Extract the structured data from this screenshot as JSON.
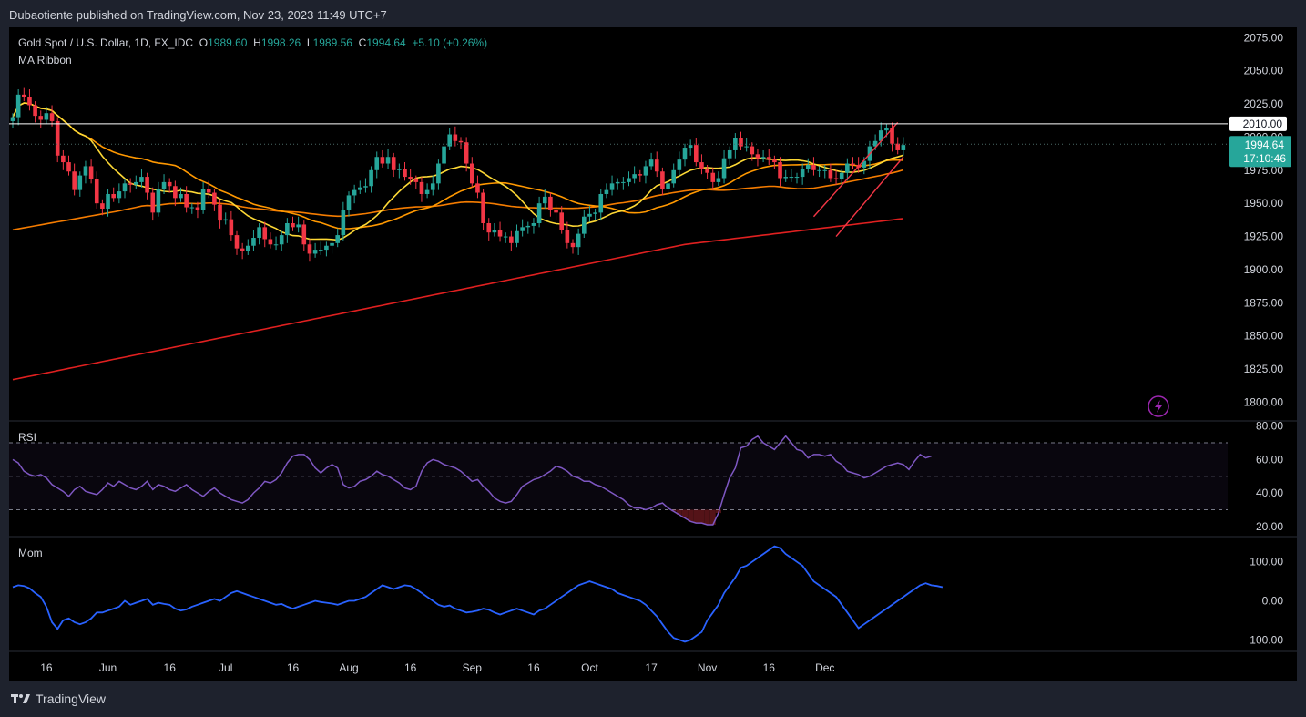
{
  "header": {
    "publisher": "Dubaotiente published on TradingView.com, Nov 23, 2023 11:49 UTC+7"
  },
  "legend": {
    "symbol": "Gold Spot / U.S. Dollar, 1D, FX_IDC",
    "open_label": "O",
    "open": "1989.60",
    "high_label": "H",
    "high": "1998.26",
    "low_label": "L",
    "low": "1989.56",
    "close_label": "C",
    "close": "1994.64",
    "change": "+5.10 (+0.26%)",
    "indicator": "MA Ribbon"
  },
  "rsi_label": "RSI",
  "mom_label": "Mom",
  "footer": {
    "brand": "TradingView"
  },
  "colors": {
    "up": "#26a69a",
    "down": "#f23645",
    "rsi": "#7e57c2",
    "mom": "#2962ff"
  },
  "chart_data": [
    {
      "type": "candlestick",
      "title": "Gold Spot / U.S. Dollar, 1D, FX_IDC",
      "ylim": [
        1790,
        2080
      ],
      "y_ticks": [
        2075,
        2050,
        2025,
        2000,
        1975,
        1950,
        1925,
        1900,
        1875,
        1850,
        1825,
        1800
      ],
      "y_tick_labels": [
        "2075.00",
        "2050.00",
        "2025.00",
        "2000.00",
        "1975.00",
        "1950.00",
        "1925.00",
        "1900.00",
        "1875.00",
        "1850.00",
        "1825.00",
        "1800.00"
      ],
      "x_tick_labels": [
        {
          "label": "16",
          "i": 6
        },
        {
          "label": "Jun",
          "i": 17
        },
        {
          "label": "16",
          "i": 28
        },
        {
          "label": "Jul",
          "i": 38
        },
        {
          "label": "16",
          "i": 50
        },
        {
          "label": "Aug",
          "i": 60
        },
        {
          "label": "16",
          "i": 71
        },
        {
          "label": "Sep",
          "i": 82
        },
        {
          "label": "16",
          "i": 93
        },
        {
          "label": "Oct",
          "i": 103
        },
        {
          "label": "17",
          "i": 114
        },
        {
          "label": "Nov",
          "i": 124
        },
        {
          "label": "16",
          "i": 135
        },
        {
          "label": "Dec",
          "i": 145
        }
      ],
      "close": [
        2015,
        2032,
        2030,
        2024,
        2016,
        2013,
        2018,
        2012,
        1986,
        1981,
        1974,
        1960,
        1971,
        1978,
        1968,
        1950,
        1946,
        1957,
        1954,
        1959,
        1965,
        1964,
        1966,
        1970,
        1958,
        1943,
        1961,
        1966,
        1963,
        1954,
        1957,
        1947,
        1947,
        1945,
        1961,
        1958,
        1949,
        1937,
        1938,
        1926,
        1916,
        1914,
        1918,
        1924,
        1932,
        1923,
        1919,
        1919,
        1926,
        1935,
        1932,
        1934,
        1919,
        1912,
        1915,
        1915,
        1918,
        1920,
        1926,
        1945,
        1956,
        1960,
        1962,
        1963,
        1975,
        1985,
        1980,
        1985,
        1975,
        1976,
        1970,
        1968,
        1966,
        1957,
        1960,
        1965,
        1980,
        1993,
        2002,
        1997,
        1996,
        1980,
        1965,
        1958,
        1935,
        1928,
        1930,
        1925,
        1925,
        1920,
        1929,
        1932,
        1933,
        1935,
        1950,
        1955,
        1945,
        1943,
        1930,
        1920,
        1917,
        1927,
        1940,
        1942,
        1943,
        1957,
        1960,
        1965,
        1966,
        1966,
        1969,
        1972,
        1971,
        1978,
        1983,
        1974,
        1961,
        1965,
        1975,
        1983,
        1992,
        1994,
        1981,
        1976,
        1973,
        1966,
        1969,
        1984,
        1990,
        1999,
        1993,
        1993,
        1987,
        1984,
        1985,
        1983,
        1981,
        1969,
        1970,
        1970,
        1970,
        1976,
        1979,
        1975,
        1975,
        1975,
        1969,
        1968,
        1973,
        1980,
        1979,
        1977,
        1982,
        1993,
        1997,
        2005,
        2007,
        1995,
        1990,
        1994
      ]
    },
    {
      "type": "line",
      "title": "RSI",
      "ylim": [
        15,
        82
      ],
      "y_ticks": [
        80,
        60,
        40,
        20
      ],
      "y_tick_labels": [
        "80.00",
        "60.00",
        "40.00",
        "20.00"
      ],
      "levels": [
        70,
        50,
        30
      ],
      "series": [
        {
          "values": [
            60,
            58,
            53,
            51,
            50,
            51,
            49,
            45,
            43,
            41,
            38,
            42,
            44,
            41,
            40,
            39,
            42,
            46,
            44,
            47,
            45,
            43,
            42,
            44,
            47,
            42,
            45,
            44,
            42,
            41,
            43,
            45,
            42,
            40,
            38,
            41,
            43,
            40,
            38,
            36,
            35,
            34,
            36,
            40,
            43,
            47,
            46,
            48,
            52,
            58,
            62,
            63,
            63,
            60,
            55,
            52,
            55,
            57,
            55,
            45,
            43,
            44,
            47,
            48,
            50,
            53,
            51,
            50,
            48,
            46,
            43,
            42,
            44,
            53,
            58,
            60,
            59,
            57,
            56,
            55,
            53,
            50,
            47,
            48,
            44,
            41,
            37,
            35,
            34,
            35,
            39,
            44,
            46,
            48,
            49,
            51,
            53,
            56,
            55,
            53,
            50,
            49,
            47,
            47,
            45,
            44,
            42,
            40,
            38,
            36,
            33,
            31,
            31,
            30,
            31,
            33,
            34,
            31,
            29,
            27,
            25,
            23,
            22,
            22,
            21,
            21,
            28,
            39,
            49,
            55,
            67,
            68,
            72,
            74,
            70,
            68,
            66,
            70,
            74,
            70,
            66,
            65,
            61,
            63,
            63,
            62,
            63,
            59,
            57,
            53,
            52,
            51,
            49,
            50,
            52,
            54,
            56,
            57,
            58,
            57,
            54,
            59,
            63,
            61,
            62
          ]
        }
      ]
    },
    {
      "type": "line",
      "title": "Mom",
      "ylim": [
        -125,
        160
      ],
      "y_ticks": [
        100,
        0,
        -100
      ],
      "y_tick_labels": [
        "100.00",
        "0.00",
        "−100.00"
      ],
      "series": [
        {
          "values": [
            35,
            40,
            38,
            32,
            20,
            10,
            -15,
            -55,
            -72,
            -50,
            -45,
            -55,
            -60,
            -55,
            -45,
            -30,
            -30,
            -25,
            -20,
            -15,
            0,
            -10,
            -5,
            0,
            5,
            -10,
            -5,
            -8,
            -10,
            -20,
            -25,
            -22,
            -15,
            -10,
            -5,
            0,
            5,
            0,
            10,
            20,
            25,
            20,
            15,
            10,
            5,
            0,
            -5,
            -10,
            -8,
            -15,
            -20,
            -15,
            -10,
            -5,
            0,
            -3,
            -5,
            -7,
            -10,
            -5,
            0,
            0,
            5,
            10,
            20,
            30,
            40,
            35,
            30,
            35,
            40,
            38,
            30,
            20,
            10,
            0,
            -10,
            -15,
            -12,
            -20,
            -25,
            -30,
            -28,
            -25,
            -20,
            -23,
            -30,
            -35,
            -30,
            -25,
            -20,
            -25,
            -30,
            -35,
            -25,
            -20,
            -10,
            0,
            10,
            20,
            30,
            40,
            45,
            50,
            45,
            40,
            35,
            30,
            20,
            15,
            10,
            5,
            0,
            -10,
            -25,
            -40,
            -60,
            -80,
            -95,
            -100,
            -105,
            -100,
            -90,
            -80,
            -50,
            -30,
            -10,
            20,
            40,
            60,
            85,
            90,
            100,
            110,
            120,
            130,
            140,
            135,
            120,
            110,
            100,
            90,
            70,
            50,
            40,
            30,
            20,
            10,
            -10,
            -30,
            -50,
            -70,
            -60,
            -50,
            -40,
            -30,
            -20,
            -10,
            0,
            10,
            20,
            30,
            40,
            45,
            40,
            38,
            35
          ]
        }
      ]
    },
    {
      "type": "horizontal_line",
      "value": 2010,
      "label": "2010.00"
    },
    {
      "type": "price_label",
      "value": 1994.64,
      "label": "1994.64",
      "countdown": "17:10:46"
    }
  ]
}
